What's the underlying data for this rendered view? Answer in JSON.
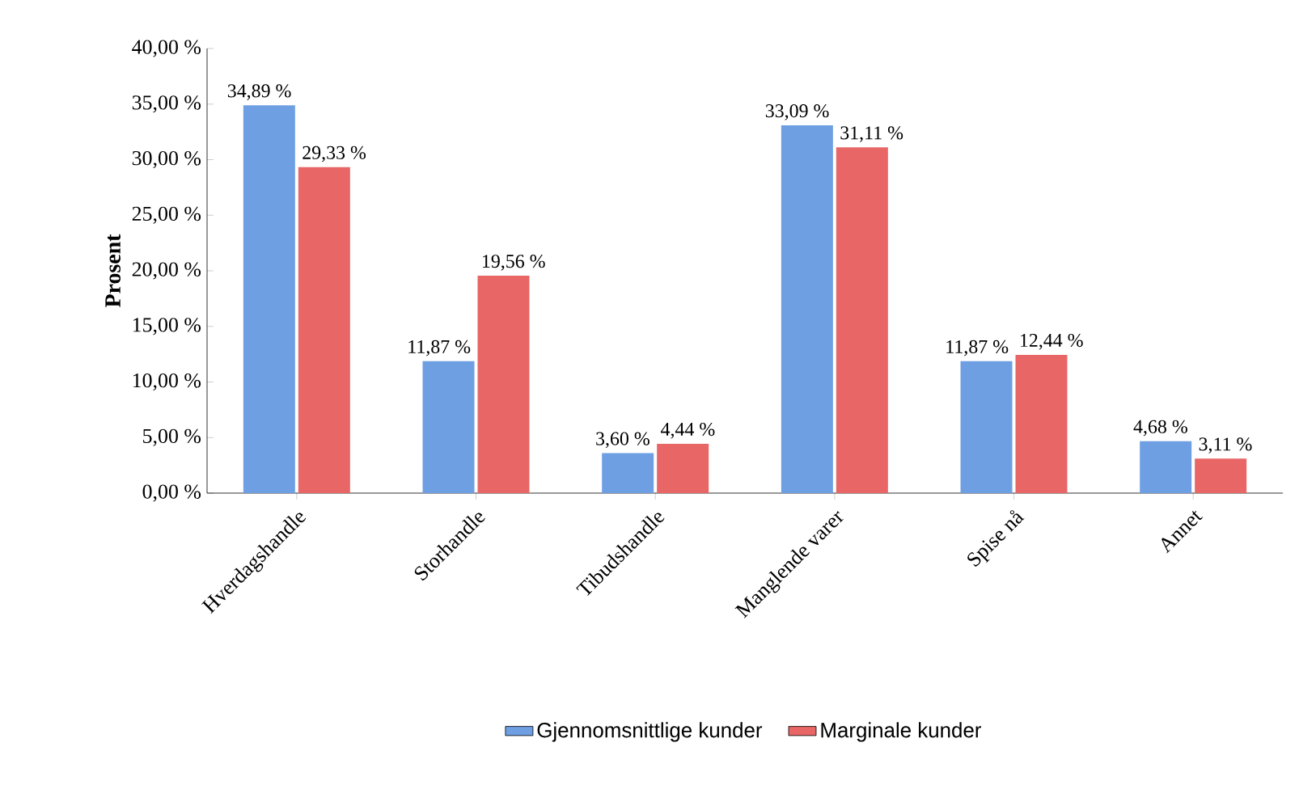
{
  "chart_data": {
    "type": "bar",
    "ylabel": "Prosent",
    "categories": [
      "Hverdagshandle",
      "Storhandle",
      "Tibudshandle",
      "Manglende varer",
      "Spise nå",
      "Annet"
    ],
    "series": [
      {
        "name": "Gjennomsnittlige kunder",
        "color": "#6f9fe3",
        "values": [
          34.89,
          11.87,
          3.6,
          33.09,
          11.87,
          4.68
        ],
        "value_labels": [
          "34,89 %",
          "11,87 %",
          "3,60 %",
          "33,09 %",
          "11,87 %",
          "4,68 %"
        ]
      },
      {
        "name": "Marginale kunder",
        "color": "#e86666",
        "values": [
          29.33,
          19.56,
          4.44,
          31.11,
          12.44,
          3.11
        ],
        "value_labels": [
          "29,33 %",
          "19,56 %",
          "4,44 %",
          "31,11 %",
          "12,44 %",
          "3,11 %"
        ]
      }
    ],
    "ylim": [
      0,
      40
    ],
    "yticks": [
      {
        "value": 0,
        "label": "0,00 %"
      },
      {
        "value": 5,
        "label": "5,00 %"
      },
      {
        "value": 10,
        "label": "10,00 %"
      },
      {
        "value": 15,
        "label": "15,00 %"
      },
      {
        "value": 20,
        "label": "20,00 %"
      },
      {
        "value": 25,
        "label": "25,00 %"
      },
      {
        "value": 30,
        "label": "30,00 %"
      },
      {
        "value": 35,
        "label": "35,00 %"
      },
      {
        "value": 40,
        "label": "40,00 %"
      }
    ],
    "grid": false,
    "legend": "bottom"
  }
}
